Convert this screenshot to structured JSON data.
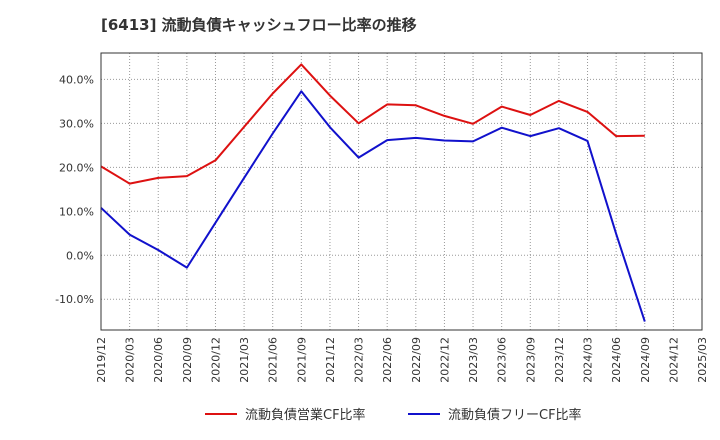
{
  "chart_data": {
    "type": "line",
    "title": "[6413]  流動負債キャッシュフロー比率の推移",
    "xlabel": "",
    "ylabel": "",
    "categories": [
      "2019/12",
      "2020/03",
      "2020/06",
      "2020/09",
      "2020/12",
      "2021/03",
      "2021/06",
      "2021/09",
      "2021/12",
      "2022/03",
      "2022/06",
      "2022/09",
      "2022/12",
      "2023/03",
      "2023/06",
      "2023/09",
      "2023/12",
      "2024/03",
      "2024/06",
      "2024/09",
      "2024/12",
      "2025/03"
    ],
    "ylim": [
      -17,
      46
    ],
    "yticks": [
      -10,
      0,
      10,
      20,
      30,
      40
    ],
    "ytick_labels": [
      "-10.0%",
      "0.0%",
      "10.0%",
      "20.0%",
      "30.0%",
      "40.0%"
    ],
    "grid": true,
    "legend_position": "bottom",
    "series": [
      {
        "name": "流動負債営業CF比率",
        "color": "#dd1111",
        "values": [
          20.2,
          16.3,
          17.6,
          18.0,
          21.6,
          29.2,
          36.8,
          43.4,
          36.3,
          30.0,
          34.3,
          34.1,
          31.7,
          29.9,
          33.8,
          31.9,
          35.1,
          32.6,
          27.1,
          27.2,
          null,
          null
        ]
      },
      {
        "name": "流動負債フリーCF比率",
        "color": "#1111cc",
        "values": [
          10.8,
          4.7,
          1.2,
          -2.8,
          7.4,
          17.6,
          27.7,
          37.3,
          29.1,
          22.2,
          26.2,
          26.7,
          26.1,
          25.9,
          29.0,
          27.1,
          28.9,
          26.0,
          4.9,
          -15.1,
          null,
          null
        ]
      }
    ]
  }
}
